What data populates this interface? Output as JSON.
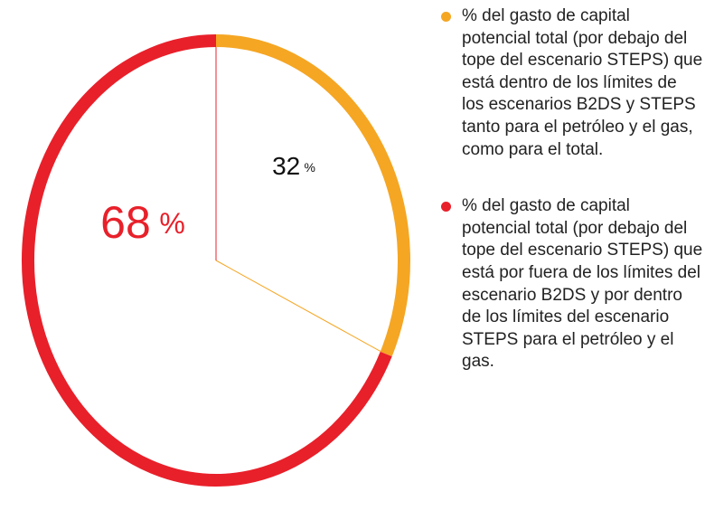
{
  "chart_data": {
    "type": "pie",
    "unit": "%",
    "series": [
      {
        "name": "% del gasto de capital potencial total (por debajo del tope del escenario STEPS) que está dentro de los límites de los escenarios B2DS y STEPS tanto para el petróleo y el gas, como para el total.",
        "color": "#f5a623",
        "values": [
          32
        ]
      },
      {
        "name": "% del gasto de capital potencial total (por debajo del tope del escenario STEPS) que está por fuera de los límites del escenario B2DS y por dentro de los límites del escenario STEPS para el petróleo y el gas.",
        "color": "#e8202a",
        "values": [
          68
        ]
      }
    ],
    "legend": "right"
  }
}
